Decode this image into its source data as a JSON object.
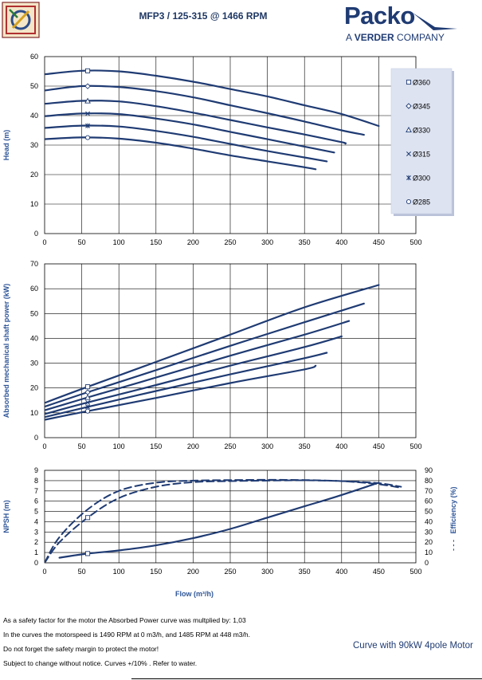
{
  "title": "MFP3 / 125-315 @ 1466 RPM",
  "brand": {
    "name": "Packo",
    "tagline_prefix": "A ",
    "tagline_bold": "VERDER",
    "tagline_suffix": " COMPANY"
  },
  "colors": {
    "curve": "#1f3b73",
    "axis_label": "#2e5597",
    "legend_bg": "#dde3f1",
    "grid": "#000000"
  },
  "footnotes": [
    "As a safety factor for the motor the Absorbed Power curve was multplied by: 1,03",
    "In the curves the motorspeed is 1490 RPM at 0 m3/h, and 1485 RPM at 448 m3/h.",
    "Do not forget the safety margin to protect the motor!",
    "Subject to change without notice. Curves +/10% . Refer to water."
  ],
  "motor_note": "Curve with 90kW 4pole Motor",
  "chart_data": [
    {
      "type": "line",
      "ylabel": "Head (m)",
      "xlim": [
        0,
        500
      ],
      "ylim": [
        0,
        60
      ],
      "xticks": [
        0,
        50,
        100,
        150,
        200,
        250,
        300,
        350,
        400,
        450,
        500
      ],
      "yticks": [
        0,
        10,
        20,
        30,
        40,
        50,
        60
      ],
      "grid": true,
      "legend": "right",
      "series": [
        {
          "name": "Ø360",
          "marker": "square",
          "x": [
            0,
            50,
            100,
            150,
            200,
            250,
            300,
            350,
            400,
            450
          ],
          "y": [
            54,
            55.2,
            55.0,
            53.5,
            51.5,
            49,
            46.5,
            43.5,
            40.5,
            36.5
          ]
        },
        {
          "name": "Ø345",
          "marker": "diamond",
          "x": [
            0,
            50,
            100,
            150,
            200,
            250,
            300,
            350,
            400,
            430
          ],
          "y": [
            48.5,
            50,
            49.7,
            48.3,
            46.2,
            43.5,
            40.8,
            38,
            35,
            33.5
          ]
        },
        {
          "name": "Ø330",
          "marker": "triangle",
          "x": [
            0,
            50,
            100,
            150,
            200,
            250,
            300,
            350,
            400,
            405
          ],
          "y": [
            44,
            45,
            44.8,
            43.2,
            41,
            38.5,
            36,
            33.6,
            31,
            30.5
          ]
        },
        {
          "name": "Ø315",
          "marker": "x",
          "x": [
            0,
            50,
            100,
            150,
            200,
            250,
            300,
            350,
            390
          ],
          "y": [
            39.8,
            40.7,
            40.5,
            39,
            37,
            34.5,
            32,
            29.5,
            27.5
          ]
        },
        {
          "name": "Ø300",
          "marker": "star",
          "x": [
            0,
            50,
            100,
            150,
            200,
            250,
            300,
            350,
            380
          ],
          "y": [
            35.8,
            36.6,
            36.3,
            34.8,
            32.8,
            30.4,
            28,
            25.8,
            24.5
          ]
        },
        {
          "name": "Ø285",
          "marker": "circle",
          "x": [
            0,
            50,
            100,
            150,
            200,
            250,
            300,
            350,
            365
          ],
          "y": [
            32,
            32.6,
            32.2,
            30.8,
            28.8,
            26.5,
            24.5,
            22.5,
            21.8
          ]
        }
      ]
    },
    {
      "type": "line",
      "ylabel": "Absorbed mechanical shaft power (kW)",
      "xlim": [
        0,
        500
      ],
      "ylim": [
        0,
        70
      ],
      "xticks": [
        0,
        50,
        100,
        150,
        200,
        250,
        300,
        350,
        400,
        450,
        500
      ],
      "yticks": [
        0,
        10,
        20,
        30,
        40,
        50,
        60,
        70
      ],
      "grid": true,
      "series": [
        {
          "name": "Ø360",
          "marker": "square",
          "x": [
            0,
            58,
            150,
            250,
            350,
            450
          ],
          "y": [
            14,
            20.5,
            30.5,
            41.5,
            52.5,
            61.5
          ]
        },
        {
          "name": "Ø345",
          "marker": "diamond",
          "x": [
            0,
            58,
            150,
            250,
            350,
            430
          ],
          "y": [
            12.5,
            18.3,
            27.2,
            37,
            46.5,
            54
          ]
        },
        {
          "name": "Ø330",
          "marker": "triangle",
          "x": [
            0,
            58,
            150,
            250,
            350,
            410
          ],
          "y": [
            11,
            16.2,
            24.2,
            33,
            41.5,
            47
          ]
        },
        {
          "name": "Ø315",
          "marker": "x",
          "x": [
            0,
            58,
            150,
            250,
            350,
            400
          ],
          "y": [
            9.5,
            14.2,
            21.2,
            29,
            36.5,
            40.8
          ]
        },
        {
          "name": "Ø300",
          "marker": "star",
          "x": [
            0,
            58,
            150,
            250,
            350,
            380
          ],
          "y": [
            8.3,
            12.4,
            18.8,
            25.5,
            32,
            34.2
          ]
        },
        {
          "name": "Ø285",
          "marker": "circle",
          "x": [
            0,
            58,
            150,
            250,
            350,
            365
          ],
          "y": [
            7.2,
            10.7,
            16,
            22,
            27.5,
            29
          ]
        }
      ]
    },
    {
      "type": "line",
      "ylabel": "NPSH (m)",
      "y2label": "Efficiency  (%)",
      "xlabel": "Flow (m³/h)",
      "xlim": [
        0,
        500
      ],
      "ylim": [
        0,
        9
      ],
      "y2lim": [
        0,
        90
      ],
      "xticks": [
        0,
        50,
        100,
        150,
        200,
        250,
        300,
        350,
        400,
        450,
        500
      ],
      "yticks": [
        0,
        1,
        2,
        3,
        4,
        5,
        6,
        7,
        8,
        9
      ],
      "y2ticks": [
        0,
        10,
        20,
        30,
        40,
        50,
        60,
        70,
        80,
        90
      ],
      "grid": true,
      "series": [
        {
          "name": "NPSH",
          "axis": "left",
          "style": "solid",
          "marker": "square",
          "x": [
            20,
            58,
            100,
            150,
            200,
            250,
            300,
            350,
            400,
            450
          ],
          "y": [
            0.5,
            0.9,
            1.2,
            1.7,
            2.4,
            3.3,
            4.4,
            5.5,
            6.6,
            7.8
          ]
        },
        {
          "name": "Efficiency Ø360",
          "axis": "right",
          "style": "dashed",
          "marker": "square",
          "x": [
            0,
            20,
            58,
            100,
            150,
            200,
            250,
            300,
            350,
            400,
            450,
            480
          ],
          "y": [
            0,
            20,
            44,
            63,
            74,
            78.5,
            79.5,
            80,
            80.3,
            79.5,
            77.5,
            74
          ]
        },
        {
          "name": "Efficiency",
          "axis": "right",
          "style": "dashed",
          "marker": "none",
          "x": [
            0,
            20,
            58,
            100,
            150,
            200,
            250,
            300,
            350,
            400,
            450,
            480
          ],
          "y": [
            0,
            25,
            52,
            70,
            78,
            80,
            80.5,
            80.8,
            80.5,
            79.5,
            76.5,
            73
          ]
        }
      ]
    }
  ]
}
